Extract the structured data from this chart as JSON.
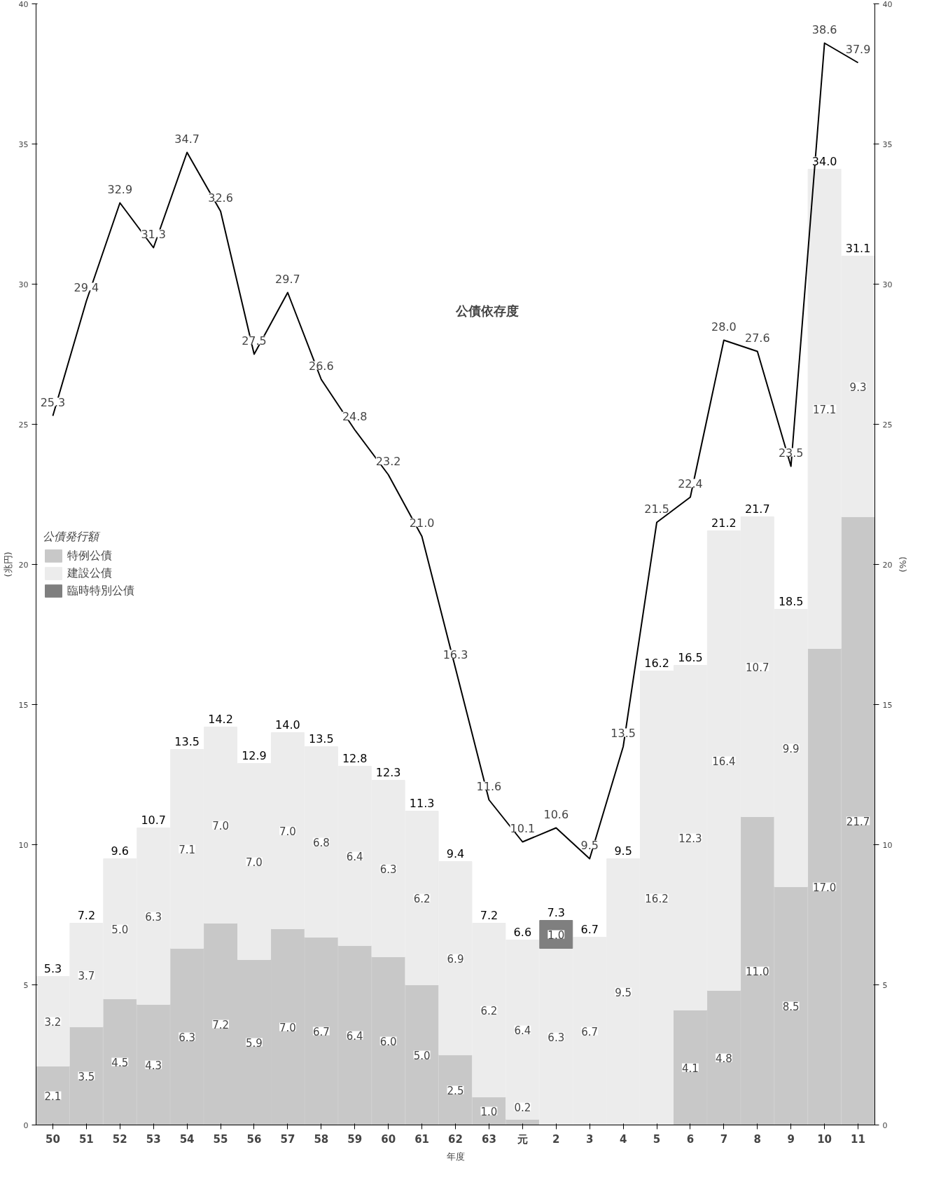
{
  "chart_data": {
    "type": "bar",
    "stacked": true,
    "categories": [
      "50",
      "51",
      "52",
      "53",
      "54",
      "55",
      "56",
      "57",
      "58",
      "59",
      "60",
      "61",
      "62",
      "63",
      "元",
      "2",
      "3",
      "4",
      "5",
      "6",
      "7",
      "8",
      "9",
      "10",
      "11"
    ],
    "series": [
      {
        "name": "特例公債",
        "color": "#c8c8c8",
        "values": [
          2.1,
          3.5,
          4.5,
          4.3,
          6.3,
          7.2,
          5.9,
          7.0,
          6.7,
          6.4,
          6.0,
          5.0,
          2.5,
          1.0,
          0.2,
          0,
          0,
          0,
          0,
          4.1,
          4.8,
          11.0,
          8.5,
          17.0,
          21.7
        ],
        "value_labels": [
          "2.1",
          "3.5",
          "4.5",
          "4.3",
          "6.3",
          "7.2",
          "5.9",
          "7.0",
          "6.7",
          "6.4",
          "6.0",
          "5.0",
          "2.5",
          "1.0",
          "0.2",
          null,
          null,
          null,
          null,
          "4.1",
          "4.8",
          "11.0",
          "8.5",
          "17.0",
          "21.7"
        ]
      },
      {
        "name": "建設公債",
        "color": "#ececec",
        "values": [
          3.2,
          3.7,
          5.0,
          6.3,
          7.1,
          7.0,
          7.0,
          7.0,
          6.8,
          6.4,
          6.3,
          6.2,
          6.9,
          6.2,
          6.4,
          6.3,
          6.7,
          9.5,
          16.2,
          12.3,
          16.4,
          10.7,
          9.9,
          17.1,
          9.3
        ],
        "value_labels": [
          "3.2",
          "3.7",
          "5.0",
          "6.3",
          "7.1",
          "7.0",
          "7.0",
          "7.0",
          "6.8",
          "6.4",
          "6.3",
          "6.2",
          "6.9",
          "6.2",
          "6.4",
          "6.3",
          "6.7",
          "9.5",
          "16.2",
          "12.3",
          "16.4",
          "10.7",
          "9.9",
          "17.1",
          "9.3"
        ]
      },
      {
        "name": "臨時特別公債",
        "color": "#7f7f7f",
        "values": [
          0,
          0,
          0,
          0,
          0,
          0,
          0,
          0,
          0,
          0,
          0,
          0,
          0,
          0,
          0,
          1.0,
          0,
          0,
          0,
          0,
          0,
          0,
          0,
          0,
          0
        ],
        "value_labels": [
          null,
          null,
          null,
          null,
          null,
          null,
          null,
          null,
          null,
          null,
          null,
          null,
          null,
          null,
          null,
          "1.0",
          null,
          null,
          null,
          null,
          null,
          null,
          null,
          null,
          null
        ]
      },
      {
        "type": "line",
        "axis": "y2",
        "color": "#000000",
        "values": [
          25.3,
          29.4,
          32.9,
          31.3,
          34.7,
          32.6,
          27.5,
          29.7,
          26.6,
          24.8,
          23.2,
          21.0,
          16.3,
          11.6,
          10.1,
          10.6,
          9.5,
          13.5,
          21.5,
          22.4,
          28.0,
          27.6,
          23.5,
          38.6,
          37.9
        ],
        "value_labels": [
          "25.3",
          "29.4",
          "32.9",
          "31.3",
          "34.7",
          "32.6",
          "27.5",
          "29.7",
          "26.6",
          "24.8",
          "23.2",
          "21.0",
          "16.3",
          "11.6",
          "10.1",
          "10.6",
          "9.5",
          "13.5",
          "21.5",
          "22.4",
          "28.0",
          "27.6",
          "23.5",
          "38.6",
          "37.9"
        ]
      }
    ],
    "totals": [
      "5.3",
      "7.2",
      "9.6",
      "10.7",
      "13.5",
      "14.2",
      "12.9",
      "14.0",
      "13.5",
      "12.8",
      "12.3",
      "11.3",
      "9.4",
      "7.2",
      "6.6",
      "7.3",
      "6.7",
      "9.5",
      "16.2",
      "16.5",
      "21.2",
      "21.7",
      "18.5",
      "34.0",
      "31.1"
    ],
    "ylabel": "(兆円)",
    "y2label": "(%)",
    "xlabel": "年度",
    "legend_title": "公債発行額",
    "annotations": [
      "公債依存度"
    ],
    "ylim": [
      0,
      40
    ],
    "yticks": [
      0,
      5,
      10,
      15,
      20,
      25,
      30,
      35,
      40
    ],
    "y2lim": [
      0,
      40
    ],
    "y2ticks": [
      0,
      5,
      10,
      15,
      20,
      25,
      30,
      35,
      40
    ],
    "grid": false,
    "legend": "center left",
    "marker": "none",
    "line_style": "solid"
  }
}
